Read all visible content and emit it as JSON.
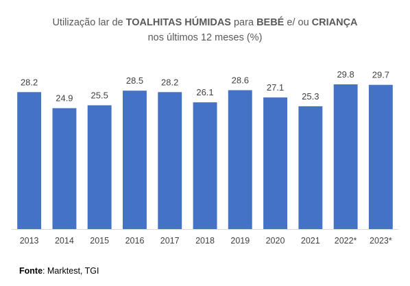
{
  "title_parts": [
    {
      "text": "Utilização lar de ",
      "bold": false
    },
    {
      "text": "TOALHITAS HÚMIDAS",
      "bold": true
    },
    {
      "text": " para ",
      "bold": false
    },
    {
      "text": "BEBÉ",
      "bold": true
    },
    {
      "text": " e/ ou ",
      "bold": false
    },
    {
      "text": "CRIANÇA",
      "bold": true
    }
  ],
  "title_line2": "nos últimos 12 meses (%)",
  "source": {
    "label": "Fonte",
    "separator": ":",
    "text": " Marktest, TGI"
  },
  "colors": {
    "bar": "#4472C4",
    "title": "#595959",
    "labels": "#404040",
    "axis": "#D9D9D9"
  },
  "chart_data": {
    "type": "bar",
    "title": "Utilização lar de TOALHITAS HÚMIDAS para BEBÉ e/ ou CRIANÇA nos últimos 12 meses (%)",
    "categories": [
      "2013",
      "2014",
      "2015",
      "2016",
      "2017",
      "2018",
      "2019",
      "2020",
      "2021",
      "2022*",
      "2023*"
    ],
    "values": [
      28.2,
      24.9,
      25.5,
      28.5,
      28.2,
      26.1,
      28.6,
      27.1,
      25.3,
      29.8,
      29.7
    ],
    "data_labels": [
      "28.2",
      "24.9",
      "25.5",
      "28.5",
      "28.2",
      "26.1",
      "28.6",
      "27.1",
      "25.3",
      "29.8",
      "29.7"
    ],
    "xlabel": "",
    "ylabel": "",
    "ylim": [
      0,
      30
    ],
    "grid": false,
    "legend": "none"
  }
}
